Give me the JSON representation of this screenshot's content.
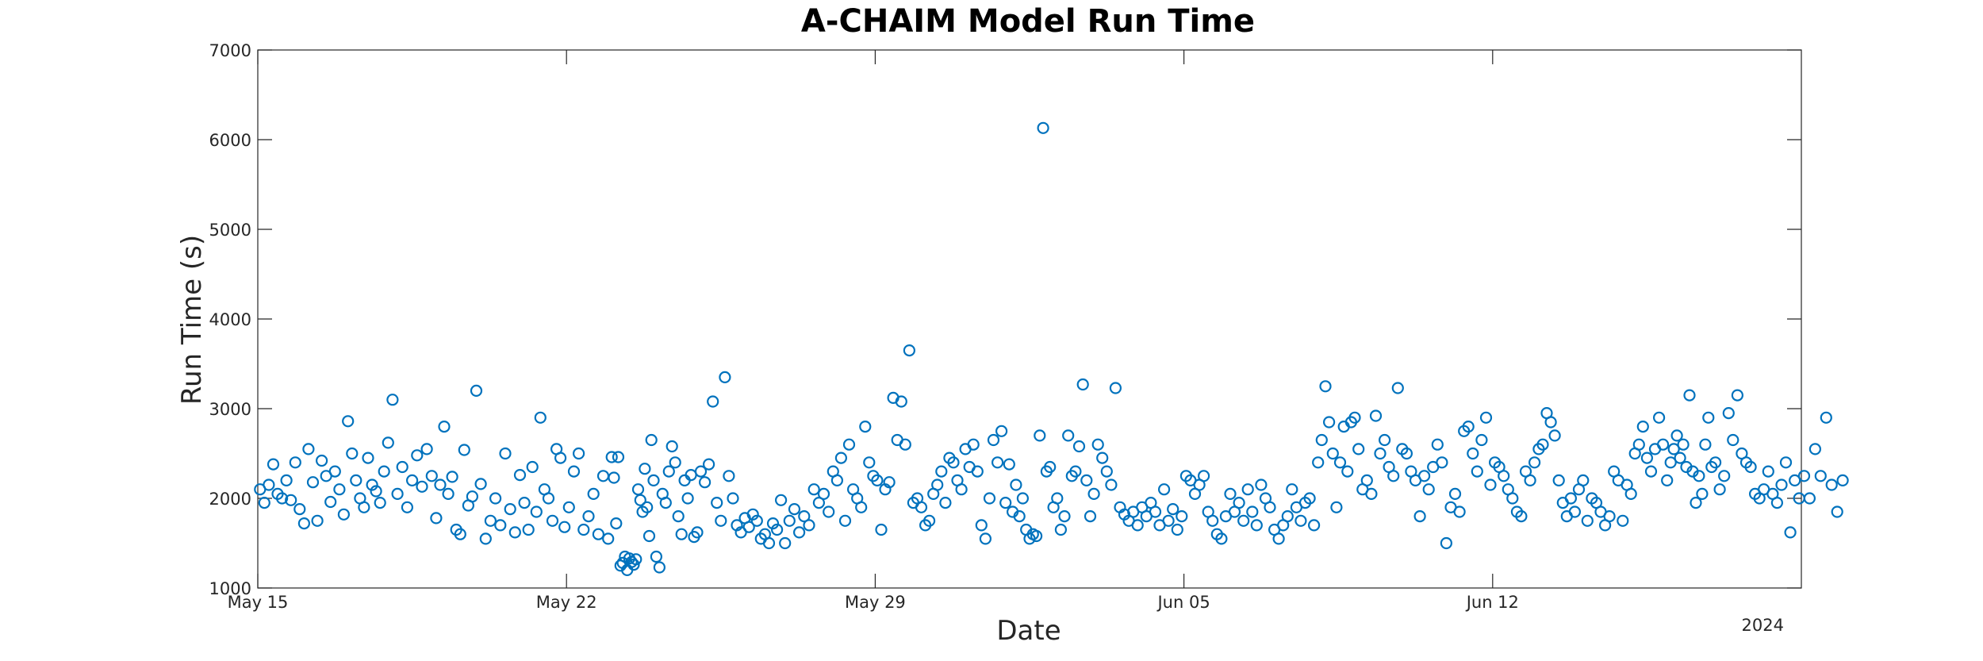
{
  "chart_data": {
    "type": "scatter",
    "title": "A-CHAIM Model Run Time",
    "xlabel": "Date",
    "ylabel": "Run Time (s)",
    "x_tick_labels": [
      "May 15",
      "May 22",
      "May 29",
      "Jun 05",
      "Jun 12"
    ],
    "x_secondary_label": "2024",
    "y_tick_labels": [
      "1000",
      "2000",
      "3000",
      "4000",
      "5000",
      "6000",
      "7000"
    ],
    "ylim": [
      1000,
      7000
    ],
    "xlim": [
      "May 15",
      "Jun 19"
    ],
    "grid": false,
    "marker": "circle-open",
    "marker_color": "#0072BD",
    "points": [
      [
        "May 15",
        2100
      ],
      [
        "May 15",
        1950
      ],
      [
        "May 15",
        2150
      ],
      [
        "May 15",
        2380
      ],
      [
        "May 15",
        2050
      ],
      [
        "May 15",
        2000
      ],
      [
        "May 15",
        2200
      ],
      [
        "May 15",
        1980
      ],
      [
        "May 15",
        2400
      ],
      [
        "May 15",
        1880
      ],
      [
        "May 16",
        1720
      ],
      [
        "May 16",
        2550
      ],
      [
        "May 16",
        2180
      ],
      [
        "May 16",
        1750
      ],
      [
        "May 16",
        2420
      ],
      [
        "May 16",
        2250
      ],
      [
        "May 16",
        1960
      ],
      [
        "May 16",
        2300
      ],
      [
        "May 16",
        2100
      ],
      [
        "May 16",
        1820
      ],
      [
        "May 17",
        2860
      ],
      [
        "May 17",
        2500
      ],
      [
        "May 17",
        2200
      ],
      [
        "May 17",
        2000
      ],
      [
        "May 17",
        1900
      ],
      [
        "May 17",
        2450
      ],
      [
        "May 17",
        2150
      ],
      [
        "May 17",
        2080
      ],
      [
        "May 17",
        1950
      ],
      [
        "May 17",
        2300
      ],
      [
        "May 17",
        2620
      ],
      [
        "May 18",
        3100
      ],
      [
        "May 18",
        2050
      ],
      [
        "May 18",
        2350
      ],
      [
        "May 18",
        1900
      ],
      [
        "May 18",
        2200
      ],
      [
        "May 18",
        2480
      ],
      [
        "May 18",
        2130
      ],
      [
        "May 18",
        2550
      ],
      [
        "May 18",
        2250
      ],
      [
        "May 19",
        1780
      ],
      [
        "May 19",
        2150
      ],
      [
        "May 19",
        2800
      ],
      [
        "May 19",
        2050
      ],
      [
        "May 19",
        2240
      ],
      [
        "May 19",
        1650
      ],
      [
        "May 19",
        1600
      ],
      [
        "May 19",
        2540
      ],
      [
        "May 19",
        1920
      ],
      [
        "May 19",
        2020
      ],
      [
        "May 19",
        3200
      ],
      [
        "May 20",
        2160
      ],
      [
        "May 20",
        1550
      ],
      [
        "May 20",
        1750
      ],
      [
        "May 20",
        2000
      ],
      [
        "May 20",
        1700
      ],
      [
        "May 20",
        2500
      ],
      [
        "May 20",
        1880
      ],
      [
        "May 20",
        1620
      ],
      [
        "May 20",
        2260
      ],
      [
        "May 21",
        1950
      ],
      [
        "May 21",
        1650
      ],
      [
        "May 21",
        2350
      ],
      [
        "May 21",
        1850
      ],
      [
        "May 21",
        2900
      ],
      [
        "May 21",
        2100
      ],
      [
        "May 21",
        2000
      ],
      [
        "May 21",
        1750
      ],
      [
        "May 21",
        2550
      ],
      [
        "May 21",
        2450
      ],
      [
        "May 21",
        1680
      ],
      [
        "May 22",
        1900
      ],
      [
        "May 22",
        2300
      ],
      [
        "May 22",
        2500
      ],
      [
        "May 22",
        1650
      ],
      [
        "May 22",
        1800
      ],
      [
        "May 22",
        2050
      ],
      [
        "May 22",
        1600
      ],
      [
        "May 22",
        2250
      ],
      [
        "May 22",
        1550
      ],
      [
        "May 23",
        2460
      ],
      [
        "May 23",
        2230
      ],
      [
        "May 23",
        1720
      ],
      [
        "May 23",
        2460
      ],
      [
        "May 23",
        1250
      ],
      [
        "May 23",
        1280
      ],
      [
        "May 23",
        1350
      ],
      [
        "May 23",
        1200
      ],
      [
        "May 23",
        1330
      ],
      [
        "May 23",
        1290
      ],
      [
        "May 23",
        1260
      ],
      [
        "May 23",
        1320
      ],
      [
        "May 23",
        2100
      ],
      [
        "May 23",
        1980
      ],
      [
        "May 23",
        1850
      ],
      [
        "May 23",
        2330
      ],
      [
        "May 23",
        1900
      ],
      [
        "May 23",
        1580
      ],
      [
        "May 23",
        2650
      ],
      [
        "May 23",
        2200
      ],
      [
        "May 24",
        1350
      ],
      [
        "May 24",
        1230
      ],
      [
        "May 24",
        2050
      ],
      [
        "May 24",
        1950
      ],
      [
        "May 24",
        2300
      ],
      [
        "May 24",
        2580
      ],
      [
        "May 24",
        2400
      ],
      [
        "May 24",
        1800
      ],
      [
        "May 24",
        1600
      ],
      [
        "May 24",
        2200
      ],
      [
        "May 24",
        2000
      ],
      [
        "May 24",
        2260
      ],
      [
        "May 24",
        1570
      ],
      [
        "May 24",
        1620
      ],
      [
        "May 25",
        2300
      ],
      [
        "May 25",
        2180
      ],
      [
        "May 25",
        2380
      ],
      [
        "May 25",
        3080
      ],
      [
        "May 25",
        1950
      ],
      [
        "May 25",
        1750
      ],
      [
        "May 25",
        3350
      ],
      [
        "May 25",
        2250
      ],
      [
        "May 25",
        2000
      ],
      [
        "May 25",
        1700
      ],
      [
        "May 25",
        1620
      ],
      [
        "May 26",
        1780
      ],
      [
        "May 26",
        1680
      ],
      [
        "May 26",
        1820
      ],
      [
        "May 26",
        1750
      ],
      [
        "May 26",
        1550
      ],
      [
        "May 26",
        1600
      ],
      [
        "May 26",
        1500
      ],
      [
        "May 26",
        1720
      ],
      [
        "May 26",
        1650
      ],
      [
        "May 26",
        1980
      ],
      [
        "May 26",
        1500
      ],
      [
        "May 27",
        1750
      ],
      [
        "May 27",
        1880
      ],
      [
        "May 27",
        1620
      ],
      [
        "May 27",
        1800
      ],
      [
        "May 27",
        1700
      ],
      [
        "May 27",
        2100
      ],
      [
        "May 27",
        1950
      ],
      [
        "May 27",
        2050
      ],
      [
        "May 27",
        1850
      ],
      [
        "May 28",
        2300
      ],
      [
        "May 28",
        2200
      ],
      [
        "May 28",
        2450
      ],
      [
        "May 28",
        1750
      ],
      [
        "May 28",
        2600
      ],
      [
        "May 28",
        2100
      ],
      [
        "May 28",
        2000
      ],
      [
        "May 28",
        1900
      ],
      [
        "May 28",
        2800
      ],
      [
        "May 28",
        2400
      ],
      [
        "May 28",
        2250
      ],
      [
        "May 29",
        2200
      ],
      [
        "May 29",
        1650
      ],
      [
        "May 29",
        2100
      ],
      [
        "May 29",
        2180
      ],
      [
        "May 29",
        3120
      ],
      [
        "May 29",
        2650
      ],
      [
        "May 29",
        3080
      ],
      [
        "May 29",
        2600
      ],
      [
        "May 29",
        3650
      ],
      [
        "May 29",
        1950
      ],
      [
        "May 29",
        2000
      ],
      [
        "May 30",
        1900
      ],
      [
        "May 30",
        1700
      ],
      [
        "May 30",
        1750
      ],
      [
        "May 30",
        2050
      ],
      [
        "May 30",
        2150
      ],
      [
        "May 30",
        2300
      ],
      [
        "May 30",
        1950
      ],
      [
        "May 30",
        2450
      ],
      [
        "May 30",
        2400
      ],
      [
        "May 30",
        2200
      ],
      [
        "May 30",
        2100
      ],
      [
        "May 31",
        2550
      ],
      [
        "May 31",
        2350
      ],
      [
        "May 31",
        2600
      ],
      [
        "May 31",
        2300
      ],
      [
        "May 31",
        1700
      ],
      [
        "May 31",
        1550
      ],
      [
        "May 31",
        2000
      ],
      [
        "May 31",
        2650
      ],
      [
        "May 31",
        2400
      ],
      [
        "May 31",
        2750
      ],
      [
        "May 31",
        1950
      ],
      [
        "Jun 01",
        2380
      ],
      [
        "Jun 01",
        1850
      ],
      [
        "Jun 01",
        2150
      ],
      [
        "Jun 01",
        1800
      ],
      [
        "Jun 01",
        2000
      ],
      [
        "Jun 01",
        1650
      ],
      [
        "Jun 01",
        1550
      ],
      [
        "Jun 01",
        1600
      ],
      [
        "Jun 01",
        1580
      ],
      [
        "Jun 01",
        2700
      ],
      [
        "Jun 01",
        6130
      ],
      [
        "Jun 01",
        2300
      ],
      [
        "Jun 01",
        2350
      ],
      [
        "Jun 02",
        1900
      ],
      [
        "Jun 02",
        2000
      ],
      [
        "Jun 02",
        1650
      ],
      [
        "Jun 02",
        1800
      ],
      [
        "Jun 02",
        2700
      ],
      [
        "Jun 02",
        2250
      ],
      [
        "Jun 02",
        2300
      ],
      [
        "Jun 02",
        2580
      ],
      [
        "Jun 02",
        3270
      ],
      [
        "Jun 02",
        2200
      ],
      [
        "Jun 02",
        1800
      ],
      [
        "Jun 02",
        2050
      ],
      [
        "Jun 03",
        2600
      ],
      [
        "Jun 03",
        2450
      ],
      [
        "Jun 03",
        2300
      ],
      [
        "Jun 03",
        2150
      ],
      [
        "Jun 03",
        3230
      ],
      [
        "Jun 03",
        1900
      ],
      [
        "Jun 03",
        1820
      ],
      [
        "Jun 03",
        1750
      ],
      [
        "Jun 03",
        1850
      ],
      [
        "Jun 03",
        1700
      ],
      [
        "Jun 04",
        1900
      ],
      [
        "Jun 04",
        1800
      ],
      [
        "Jun 04",
        1950
      ],
      [
        "Jun 04",
        1850
      ],
      [
        "Jun 04",
        1700
      ],
      [
        "Jun 04",
        2100
      ],
      [
        "Jun 04",
        1750
      ],
      [
        "Jun 04",
        1880
      ],
      [
        "Jun 04",
        1650
      ],
      [
        "Jun 04",
        1800
      ],
      [
        "Jun 05",
        2250
      ],
      [
        "Jun 05",
        2200
      ],
      [
        "Jun 05",
        2050
      ],
      [
        "Jun 05",
        2150
      ],
      [
        "Jun 05",
        2250
      ],
      [
        "Jun 05",
        1850
      ],
      [
        "Jun 05",
        1750
      ],
      [
        "Jun 05",
        1600
      ],
      [
        "Jun 05",
        1550
      ],
      [
        "Jun 05",
        1800
      ],
      [
        "Jun 06",
        2050
      ],
      [
        "Jun 06",
        1850
      ],
      [
        "Jun 06",
        1950
      ],
      [
        "Jun 06",
        1750
      ],
      [
        "Jun 06",
        2100
      ],
      [
        "Jun 06",
        1850
      ],
      [
        "Jun 06",
        1700
      ],
      [
        "Jun 06",
        2150
      ],
      [
        "Jun 06",
        2000
      ],
      [
        "Jun 06",
        1900
      ],
      [
        "Jun 07",
        1650
      ],
      [
        "Jun 07",
        1550
      ],
      [
        "Jun 07",
        1700
      ],
      [
        "Jun 07",
        1800
      ],
      [
        "Jun 07",
        2100
      ],
      [
        "Jun 07",
        1900
      ],
      [
        "Jun 07",
        1750
      ],
      [
        "Jun 07",
        1950
      ],
      [
        "Jun 07",
        2000
      ],
      [
        "Jun 07",
        1700
      ],
      [
        "Jun 08",
        2400
      ],
      [
        "Jun 08",
        2650
      ],
      [
        "Jun 08",
        3250
      ],
      [
        "Jun 08",
        2850
      ],
      [
        "Jun 08",
        2500
      ],
      [
        "Jun 08",
        1900
      ],
      [
        "Jun 08",
        2400
      ],
      [
        "Jun 08",
        2800
      ],
      [
        "Jun 08",
        2300
      ],
      [
        "Jun 08",
        2850
      ],
      [
        "Jun 08",
        2900
      ],
      [
        "Jun 08",
        2550
      ],
      [
        "Jun 09",
        2100
      ],
      [
        "Jun 09",
        2200
      ],
      [
        "Jun 09",
        2050
      ],
      [
        "Jun 09",
        2920
      ],
      [
        "Jun 09",
        2500
      ],
      [
        "Jun 09",
        2650
      ],
      [
        "Jun 09",
        2350
      ],
      [
        "Jun 09",
        2250
      ],
      [
        "Jun 09",
        3230
      ],
      [
        "Jun 09",
        2550
      ],
      [
        "Jun 10",
        2500
      ],
      [
        "Jun 10",
        2300
      ],
      [
        "Jun 10",
        2200
      ],
      [
        "Jun 10",
        1800
      ],
      [
        "Jun 10",
        2250
      ],
      [
        "Jun 10",
        2100
      ],
      [
        "Jun 10",
        2350
      ],
      [
        "Jun 10",
        2600
      ],
      [
        "Jun 10",
        2400
      ],
      [
        "Jun 10",
        1500
      ],
      [
        "Jun 11",
        1900
      ],
      [
        "Jun 11",
        2050
      ],
      [
        "Jun 11",
        1850
      ],
      [
        "Jun 11",
        2750
      ],
      [
        "Jun 11",
        2800
      ],
      [
        "Jun 11",
        2500
      ],
      [
        "Jun 11",
        2300
      ],
      [
        "Jun 11",
        2650
      ],
      [
        "Jun 11",
        2900
      ],
      [
        "Jun 11",
        2150
      ],
      [
        "Jun 12",
        2400
      ],
      [
        "Jun 12",
        2350
      ],
      [
        "Jun 12",
        2250
      ],
      [
        "Jun 12",
        2100
      ],
      [
        "Jun 12",
        2000
      ],
      [
        "Jun 12",
        1850
      ],
      [
        "Jun 12",
        1800
      ],
      [
        "Jun 12",
        2300
      ],
      [
        "Jun 12",
        2200
      ],
      [
        "Jun 12",
        2400
      ],
      [
        "Jun 13",
        2550
      ],
      [
        "Jun 13",
        2600
      ],
      [
        "Jun 13",
        2950
      ],
      [
        "Jun 13",
        2850
      ],
      [
        "Jun 13",
        2700
      ],
      [
        "Jun 13",
        2200
      ],
      [
        "Jun 13",
        1950
      ],
      [
        "Jun 13",
        1800
      ],
      [
        "Jun 13",
        2000
      ],
      [
        "Jun 13",
        1850
      ],
      [
        "Jun 13",
        2100
      ],
      [
        "Jun 14",
        2200
      ],
      [
        "Jun 14",
        1750
      ],
      [
        "Jun 14",
        2000
      ],
      [
        "Jun 14",
        1950
      ],
      [
        "Jun 14",
        1850
      ],
      [
        "Jun 14",
        1700
      ],
      [
        "Jun 14",
        1800
      ],
      [
        "Jun 14",
        2300
      ],
      [
        "Jun 14",
        2200
      ],
      [
        "Jun 14",
        1750
      ],
      [
        "Jun 15",
        2150
      ],
      [
        "Jun 15",
        2050
      ],
      [
        "Jun 15",
        2500
      ],
      [
        "Jun 15",
        2600
      ],
      [
        "Jun 15",
        2800
      ],
      [
        "Jun 15",
        2450
      ],
      [
        "Jun 15",
        2300
      ],
      [
        "Jun 15",
        2550
      ],
      [
        "Jun 15",
        2900
      ],
      [
        "Jun 15",
        2600
      ],
      [
        "Jun 15",
        2200
      ],
      [
        "Jun 16",
        2400
      ],
      [
        "Jun 16",
        2550
      ],
      [
        "Jun 16",
        2700
      ],
      [
        "Jun 16",
        2450
      ],
      [
        "Jun 16",
        2600
      ],
      [
        "Jun 16",
        2350
      ],
      [
        "Jun 16",
        3150
      ],
      [
        "Jun 16",
        2300
      ],
      [
        "Jun 16",
        1950
      ],
      [
        "Jun 16",
        2250
      ],
      [
        "Jun 16",
        2050
      ],
      [
        "Jun 16",
        2600
      ],
      [
        "Jun 16",
        2900
      ],
      [
        "Jun 16",
        2350
      ],
      [
        "Jun 17",
        2400
      ],
      [
        "Jun 17",
        2100
      ],
      [
        "Jun 17",
        2250
      ],
      [
        "Jun 17",
        2950
      ],
      [
        "Jun 17",
        2650
      ],
      [
        "Jun 17",
        3150
      ],
      [
        "Jun 17",
        2500
      ],
      [
        "Jun 17",
        2400
      ],
      [
        "Jun 17",
        2350
      ],
      [
        "Jun 17",
        2050
      ],
      [
        "Jun 18",
        2000
      ],
      [
        "Jun 18",
        2100
      ],
      [
        "Jun 18",
        2300
      ],
      [
        "Jun 18",
        2050
      ],
      [
        "Jun 18",
        1950
      ],
      [
        "Jun 18",
        2150
      ],
      [
        "Jun 18",
        2400
      ],
      [
        "Jun 18",
        1620
      ],
      [
        "Jun 18",
        2200
      ],
      [
        "Jun 18",
        2000
      ],
      [
        "Jun 19",
        2250
      ],
      [
        "Jun 19",
        2000
      ],
      [
        "Jun 19",
        2550
      ],
      [
        "Jun 19",
        2250
      ],
      [
        "Jun 19",
        2900
      ],
      [
        "Jun 19",
        2150
      ],
      [
        "Jun 19",
        1850
      ],
      [
        "Jun 19",
        2200
      ]
    ]
  }
}
